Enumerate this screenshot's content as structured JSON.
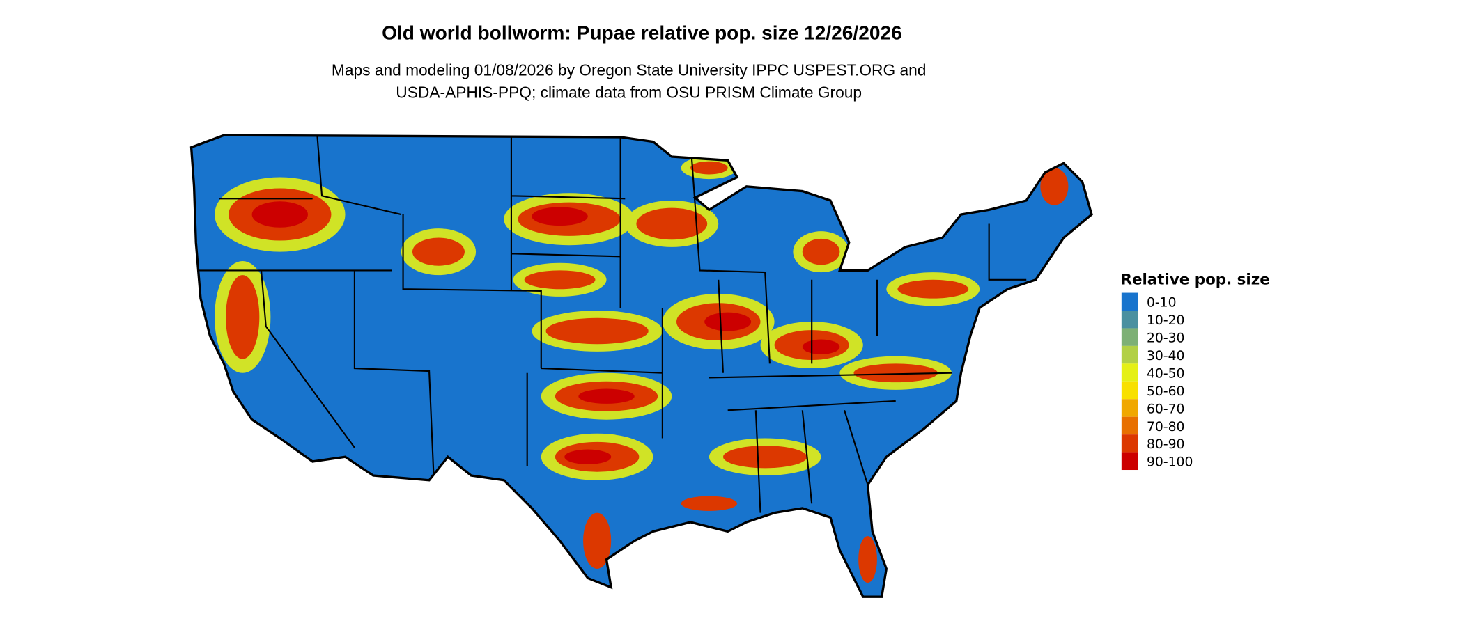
{
  "title": "Old world bollworm: Pupae relative pop. size 12/26/2026",
  "subtitle_line1": "Maps and modeling 01/08/2026 by Oregon State University IPPC USPEST.ORG and",
  "subtitle_line2": "USDA-APHIS-PPQ; climate data from OSU PRISM Climate Group",
  "legend": {
    "title": "Relative pop. size",
    "items": [
      {
        "label": "0-10",
        "color": "#1874CD"
      },
      {
        "label": "10-20",
        "color": "#4A90A0"
      },
      {
        "label": "20-30",
        "color": "#7DB075"
      },
      {
        "label": "30-40",
        "color": "#B2D045"
      },
      {
        "label": "40-50",
        "color": "#E5F015"
      },
      {
        "label": "50-60",
        "color": "#F8E000"
      },
      {
        "label": "60-70",
        "color": "#F0A800"
      },
      {
        "label": "70-80",
        "color": "#E87000"
      },
      {
        "label": "80-90",
        "color": "#DC3800"
      },
      {
        "label": "90-100",
        "color": "#CC0000"
      }
    ]
  }
}
